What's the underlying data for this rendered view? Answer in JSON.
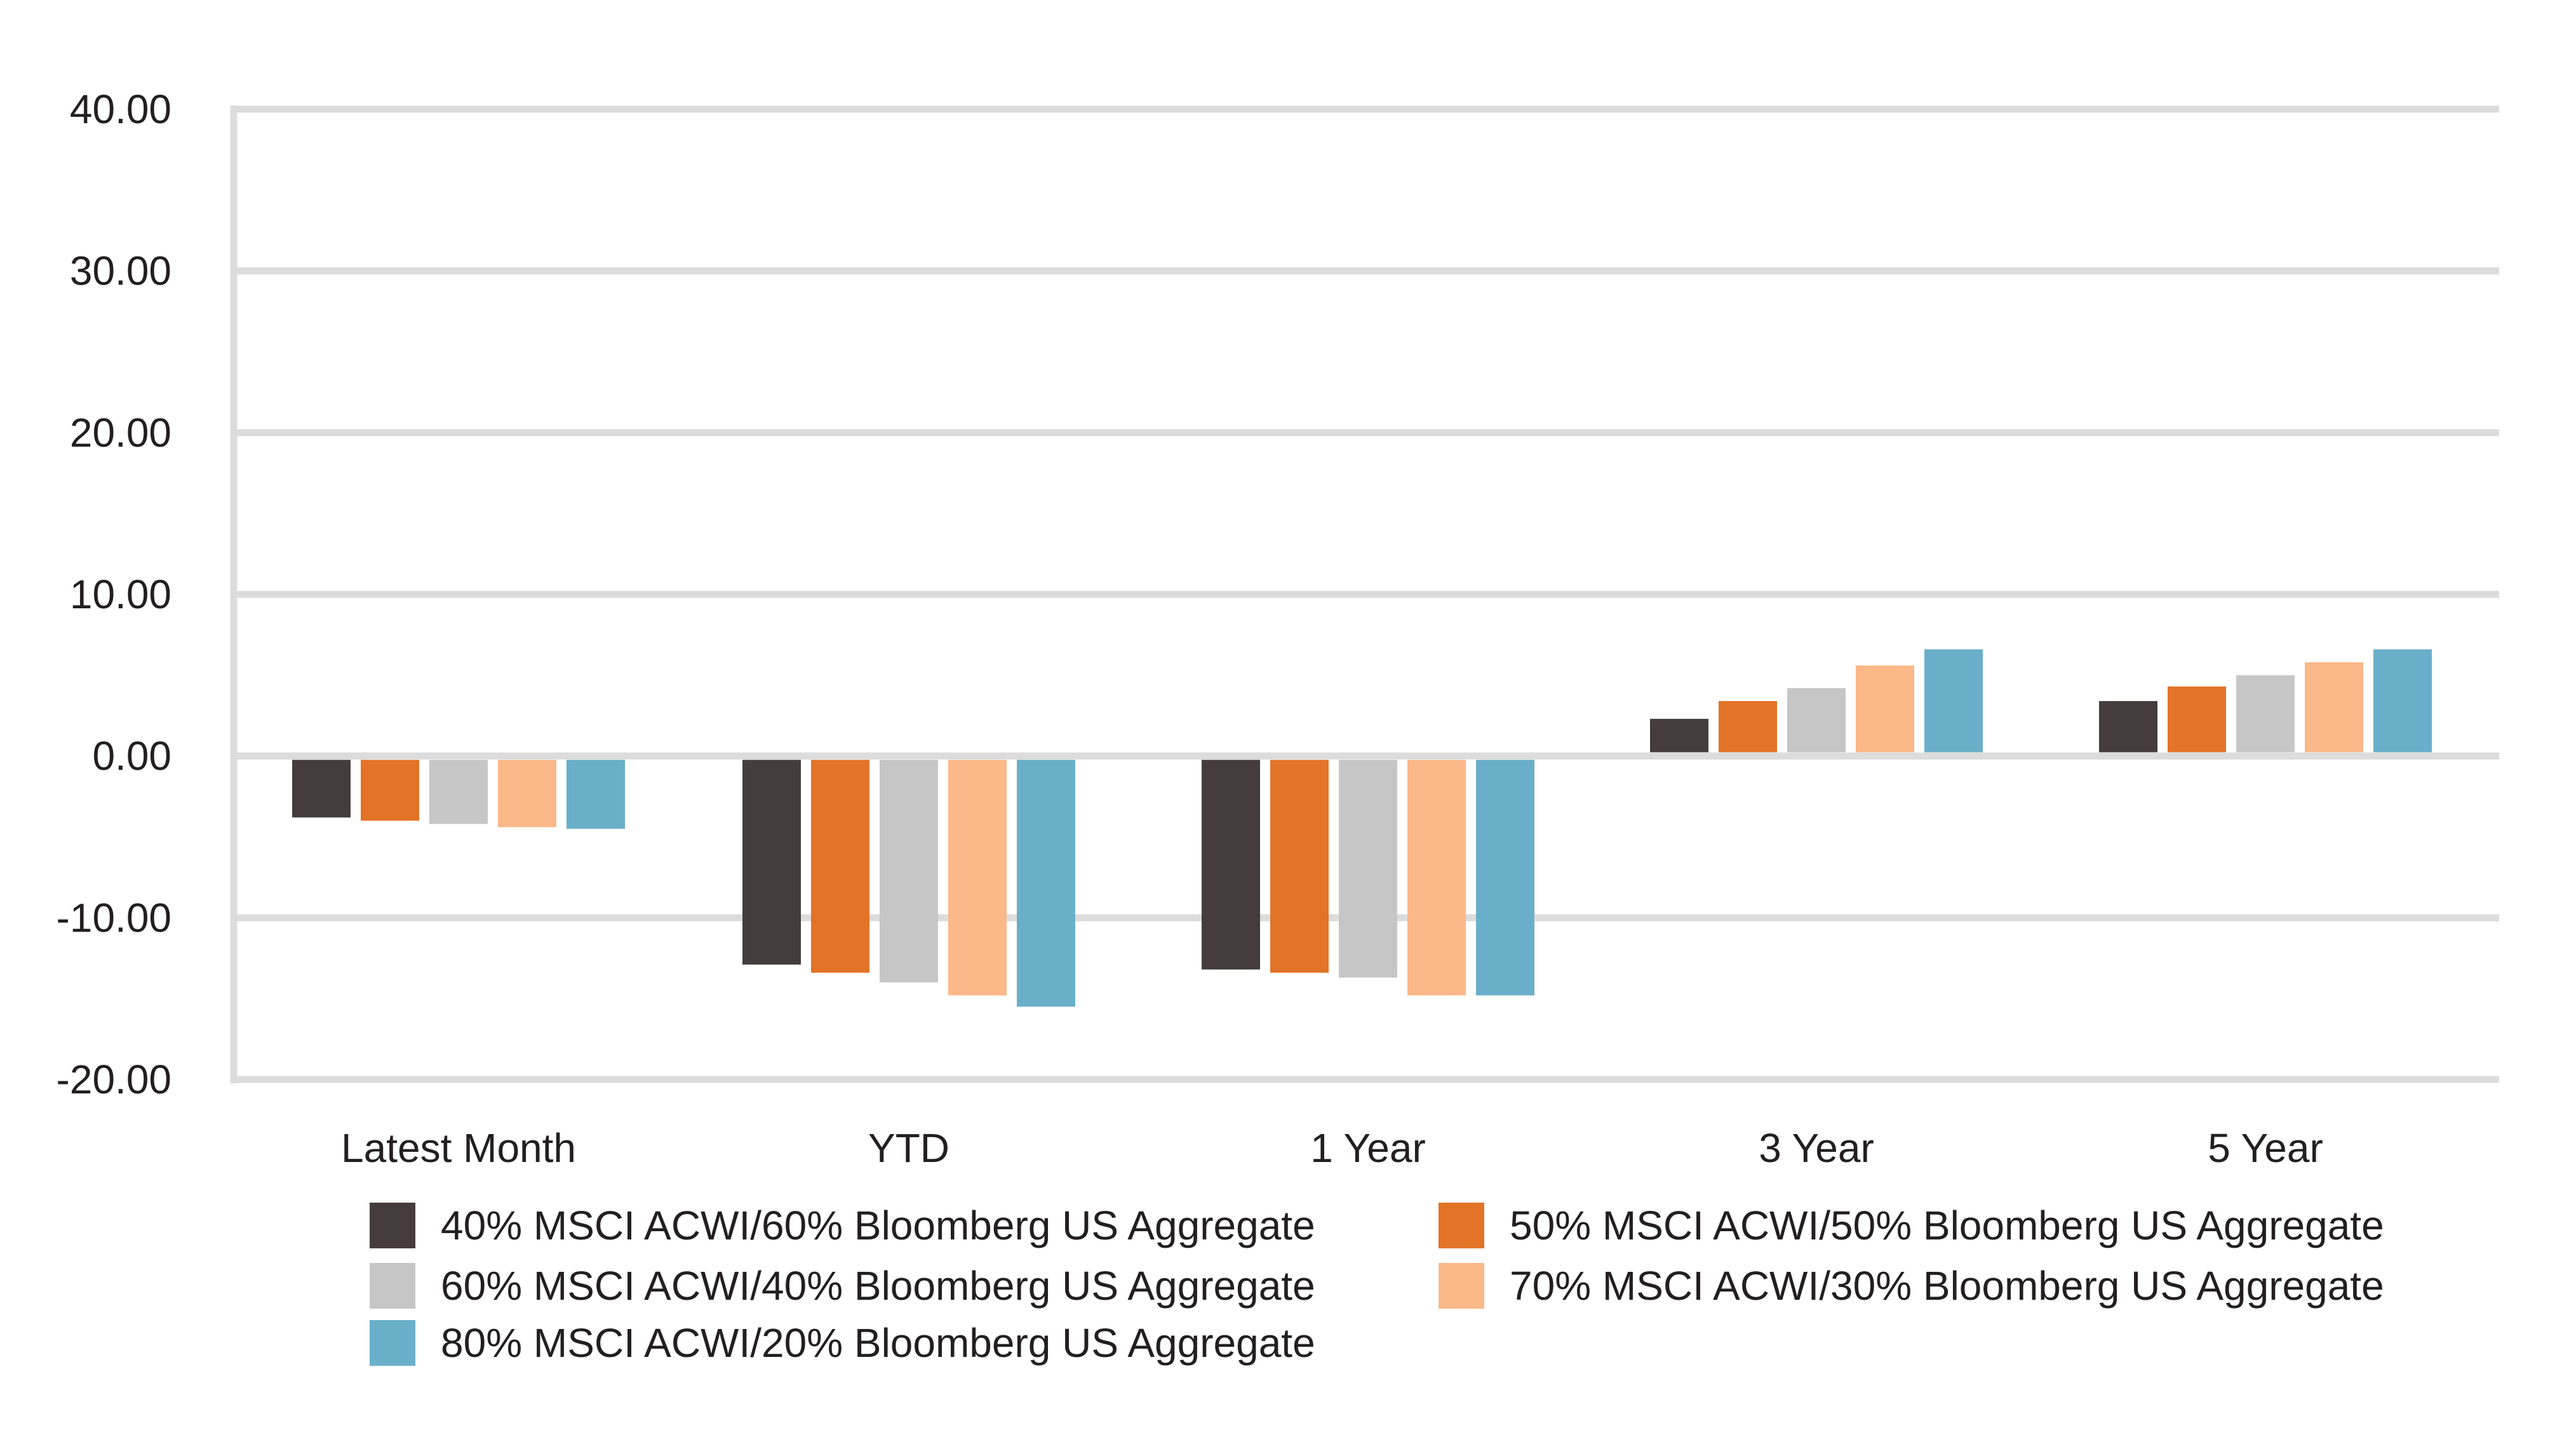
{
  "chart_data": {
    "type": "bar",
    "title": "",
    "xlabel": "",
    "ylabel": "",
    "ylim": [
      -20,
      40
    ],
    "yticks": [
      40,
      30,
      20,
      10,
      0,
      -10,
      -20
    ],
    "ytick_labels": [
      "40.00",
      "30.00",
      "20.00",
      "10.00",
      "0.00",
      "-10.00",
      "-20.00"
    ],
    "grid": true,
    "legend_position": "bottom",
    "categories": [
      "Latest Month",
      "YTD",
      "1 Year",
      "3 Year",
      "5 Year"
    ],
    "series": [
      {
        "name": "40% MSCI ACWI/60% Bloomberg US Aggregate",
        "color": "#453c3d",
        "values": [
          -3.8,
          -12.9,
          -13.2,
          2.3,
          3.4
        ]
      },
      {
        "name": "50% MSCI ACWI/50% Bloomberg US Aggregate",
        "color": "#e27327",
        "values": [
          -4.0,
          -13.4,
          -13.4,
          3.4,
          4.3
        ]
      },
      {
        "name": "60% MSCI ACWI/40% Bloomberg US Aggregate",
        "color": "#c7c6c7",
        "values": [
          -4.2,
          -14.0,
          -13.7,
          4.2,
          5.0
        ]
      },
      {
        "name": "70% MSCI ACWI/30% Bloomberg US Aggregate",
        "color": "#fbb888",
        "values": [
          -4.4,
          -14.8,
          -14.8,
          5.6,
          5.8
        ]
      },
      {
        "name": "80% MSCI ACWI/20% Bloomberg US Aggregate",
        "color": "#6aafca",
        "values": [
          -4.5,
          -15.5,
          -14.8,
          6.6,
          6.6
        ]
      }
    ]
  }
}
